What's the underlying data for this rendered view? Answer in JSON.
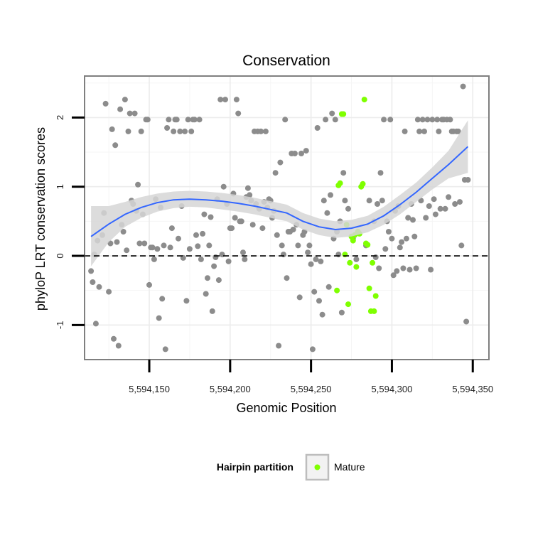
{
  "chart_data": {
    "type": "scatter",
    "title": "Conservation",
    "xlabel": "Genomic Position",
    "ylabel": "phyloP LRT conservation scores",
    "xlim": [
      5594110,
      5594360
    ],
    "ylim": [
      -1.5,
      2.6
    ],
    "x_ticks": [
      5594150,
      5594200,
      5594250,
      5594300,
      5594350
    ],
    "x_tick_labels": [
      "5,594,150",
      "5,594,200",
      "5,594,250",
      "5,594,300",
      "5,594,350"
    ],
    "y_ticks": [
      -1,
      0,
      1,
      2
    ],
    "y_tick_labels": [
      "-1",
      "0",
      "1",
      "2"
    ],
    "reference_line_y": 0,
    "grid": true,
    "legend": {
      "title": "Hairpin partition",
      "placement": "bottom",
      "entries": [
        {
          "name": "Mature",
          "color": "#7fff00"
        }
      ]
    },
    "colors": {
      "other": "#8c8c8c",
      "mature": "#7fff00",
      "smooth_line": "#3366ff",
      "confidence_band": "#d6d6d6",
      "reference_line": "#000000"
    },
    "series": [
      {
        "points": [
          [
            5594114,
            -0.22
          ],
          [
            5594115,
            -0.38
          ],
          [
            5594116,
            0.02
          ],
          [
            5594117,
            -0.98
          ],
          [
            5594118,
            0.22
          ],
          [
            5594119,
            -0.45
          ],
          [
            5594121,
            0.3
          ],
          [
            5594122,
            0.62
          ],
          [
            5594123,
            2.2
          ],
          [
            5594125,
            -0.52
          ],
          [
            5594126,
            0.18
          ],
          [
            5594127,
            1.83
          ],
          [
            5594128,
            -1.2
          ],
          [
            5594129,
            1.6
          ],
          [
            5594130,
            0.2
          ],
          [
            5594131,
            -1.3
          ],
          [
            5594132,
            2.12
          ],
          [
            5594133,
            0.45
          ],
          [
            5594134,
            0.35
          ],
          [
            5594135,
            2.26
          ],
          [
            5594136,
            0.08
          ],
          [
            5594137,
            1.8
          ],
          [
            5594138,
            2.06
          ],
          [
            5594139,
            0.8
          ],
          [
            5594140,
            0.75
          ],
          [
            5594141,
            2.06
          ],
          [
            5594142,
            0.65
          ],
          [
            5594143,
            1.03
          ],
          [
            5594144,
            0.18
          ],
          [
            5594145,
            1.8
          ],
          [
            5594146,
            0.6
          ],
          [
            5594147,
            0.18
          ],
          [
            5594148,
            1.97
          ],
          [
            5594149,
            1.97
          ],
          [
            5594150,
            -0.42
          ],
          [
            5594151,
            0.12
          ],
          [
            5594152,
            0.12
          ],
          [
            5594153,
            -0.05
          ],
          [
            5594154,
            0.82
          ],
          [
            5594155,
            0.1
          ],
          [
            5594156,
            -0.9
          ],
          [
            5594157,
            0.7
          ],
          [
            5594158,
            -0.62
          ],
          [
            5594159,
            0.15
          ],
          [
            5594160,
            -1.35
          ],
          [
            5594161,
            1.85
          ],
          [
            5594162,
            1.97
          ],
          [
            5594163,
            0.12
          ],
          [
            5594164,
            0.4
          ],
          [
            5594165,
            1.8
          ],
          [
            5594166,
            1.97
          ],
          [
            5594167,
            1.97
          ],
          [
            5594168,
            0.25
          ],
          [
            5594169,
            1.8
          ],
          [
            5594170,
            0.72
          ],
          [
            5594171,
            -0.03
          ],
          [
            5594172,
            1.8
          ],
          [
            5594173,
            -0.65
          ],
          [
            5594174,
            1.97
          ],
          [
            5594175,
            0.1
          ],
          [
            5594176,
            1.8
          ],
          [
            5594177,
            1.97
          ],
          [
            5594178,
            1.97
          ],
          [
            5594179,
            0.3
          ],
          [
            5594180,
            0.14
          ],
          [
            5594181,
            1.97
          ],
          [
            5594182,
            -0.05
          ],
          [
            5594183,
            0.32
          ],
          [
            5594184,
            0.6
          ],
          [
            5594185,
            -0.55
          ],
          [
            5594186,
            -0.32
          ],
          [
            5594187,
            0.15
          ],
          [
            5594188,
            0.56
          ],
          [
            5594189,
            -0.8
          ],
          [
            5594190,
            -0.15
          ],
          [
            5594191,
            -0.02
          ],
          [
            5594192,
            0.82
          ],
          [
            5594193,
            -0.35
          ],
          [
            5594194,
            2.26
          ],
          [
            5594195,
            0.02
          ],
          [
            5594196,
            1.0
          ],
          [
            5594197,
            2.26
          ],
          [
            5594198,
            0.75
          ],
          [
            5594199,
            -0.08
          ],
          [
            5594200,
            0.4
          ],
          [
            5594201,
            0.4
          ],
          [
            5594202,
            0.9
          ],
          [
            5594203,
            0.55
          ],
          [
            5594204,
            2.26
          ],
          [
            5594205,
            2.06
          ],
          [
            5594206,
            0.5
          ],
          [
            5594207,
            0.5
          ],
          [
            5594208,
            0.05
          ],
          [
            5594209,
            -0.05
          ],
          [
            5594210,
            0.85
          ],
          [
            5594211,
            0.98
          ],
          [
            5594212,
            0.88
          ],
          [
            5594213,
            0.8
          ],
          [
            5594214,
            0.45
          ],
          [
            5594215,
            1.8
          ],
          [
            5594216,
            0.75
          ],
          [
            5594217,
            1.8
          ],
          [
            5594218,
            0.68
          ],
          [
            5594219,
            1.8
          ],
          [
            5594220,
            0.4
          ],
          [
            5594221,
            0.78
          ],
          [
            5594222,
            1.8
          ],
          [
            5594223,
            0.7
          ],
          [
            5594224,
            0.82
          ],
          [
            5594225,
            0.8
          ],
          [
            5594226,
            0.55
          ],
          [
            5594227,
            0.65
          ],
          [
            5594228,
            1.2
          ],
          [
            5594229,
            0.3
          ],
          [
            5594230,
            -1.3
          ],
          [
            5594231,
            1.35
          ],
          [
            5594232,
            0.15
          ],
          [
            5594233,
            0.02
          ],
          [
            5594234,
            1.97
          ],
          [
            5594235,
            -0.32
          ],
          [
            5594236,
            0.35
          ],
          [
            5594237,
            0.35
          ],
          [
            5594238,
            1.48
          ],
          [
            5594239,
            0.38
          ],
          [
            5594240,
            1.48
          ],
          [
            5594241,
            0.45
          ],
          [
            5594242,
            0.15
          ],
          [
            5594243,
            -0.6
          ],
          [
            5594244,
            1.48
          ],
          [
            5594245,
            0.3
          ],
          [
            5594246,
            0.35
          ],
          [
            5594247,
            1.52
          ],
          [
            5594248,
            0.05
          ],
          [
            5594249,
            0.15
          ],
          [
            5594250,
            -0.12
          ],
          [
            5594251,
            -1.35
          ],
          [
            5594252,
            -0.52
          ],
          [
            5594253,
            -0.05
          ],
          [
            5594254,
            1.85
          ],
          [
            5594255,
            -0.65
          ],
          [
            5594256,
            -0.08
          ],
          [
            5594257,
            -0.85
          ],
          [
            5594258,
            0.8
          ],
          [
            5594259,
            1.97
          ],
          [
            5594260,
            0.62
          ],
          [
            5594261,
            -0.45
          ],
          [
            5594262,
            0.88
          ],
          [
            5594263,
            2.06
          ],
          [
            5594264,
            0.25
          ],
          [
            5594265,
            1.97
          ],
          [
            5594266,
            0.35
          ],
          [
            5594267,
            0.02
          ],
          [
            5594268,
            0.5
          ],
          [
            5594269,
            -0.82
          ],
          [
            5594270,
            1.2
          ],
          [
            5594271,
            0.8
          ],
          [
            5594273,
            0.68
          ],
          [
            5594276,
            0.25
          ],
          [
            5594278,
            -0.05
          ],
          [
            5594284,
            0.15
          ],
          [
            5594286,
            0.8
          ],
          [
            5594289,
            0.5
          ],
          [
            5594290,
            -0.02
          ],
          [
            5594291,
            0.75
          ],
          [
            5594292,
            -0.18
          ],
          [
            5594293,
            1.2
          ],
          [
            5594294,
            0.8
          ],
          [
            5594295,
            1.97
          ],
          [
            5594296,
            0.1
          ],
          [
            5594297,
            0.5
          ],
          [
            5594298,
            0.35
          ],
          [
            5594299,
            1.97
          ],
          [
            5594300,
            0.25
          ],
          [
            5594301,
            -0.28
          ],
          [
            5594302,
            0.65
          ],
          [
            5594303,
            -0.22
          ],
          [
            5594304,
            0.72
          ],
          [
            5594305,
            0.12
          ],
          [
            5594306,
            0.2
          ],
          [
            5594307,
            -0.18
          ],
          [
            5594308,
            1.8
          ],
          [
            5594309,
            0.25
          ],
          [
            5594310,
            0.55
          ],
          [
            5594311,
            -0.2
          ],
          [
            5594312,
            0.75
          ],
          [
            5594313,
            0.52
          ],
          [
            5594314,
            0.28
          ],
          [
            5594315,
            -0.18
          ],
          [
            5594316,
            1.97
          ],
          [
            5594317,
            1.8
          ],
          [
            5594318,
            0.8
          ],
          [
            5594319,
            1.97
          ],
          [
            5594320,
            1.8
          ],
          [
            5594321,
            0.55
          ],
          [
            5594322,
            1.97
          ],
          [
            5594323,
            0.72
          ],
          [
            5594324,
            -0.2
          ],
          [
            5594325,
            1.97
          ],
          [
            5594326,
            0.82
          ],
          [
            5594327,
            0.6
          ],
          [
            5594328,
            1.97
          ],
          [
            5594329,
            1.8
          ],
          [
            5594330,
            0.68
          ],
          [
            5594331,
            1.97
          ],
          [
            5594332,
            1.97
          ],
          [
            5594333,
            0.68
          ],
          [
            5594334,
            1.97
          ],
          [
            5594335,
            0.85
          ],
          [
            5594336,
            1.97
          ],
          [
            5594337,
            1.8
          ],
          [
            5594338,
            1.8
          ],
          [
            5594339,
            0.75
          ],
          [
            5594340,
            1.8
          ],
          [
            5594341,
            1.8
          ],
          [
            5594342,
            0.78
          ],
          [
            5594343,
            0.15
          ],
          [
            5594344,
            2.45
          ],
          [
            5594345,
            1.1
          ],
          [
            5594346,
            -0.95
          ],
          [
            5594347,
            1.1
          ]
        ]
      },
      {
        "name": "Mature",
        "points": [
          [
            5594266,
            -0.5
          ],
          [
            5594267,
            1.02
          ],
          [
            5594268,
            1.05
          ],
          [
            5594269,
            2.05
          ],
          [
            5594270,
            2.05
          ],
          [
            5594271,
            0.02
          ],
          [
            5594272,
            0.45
          ],
          [
            5594273,
            -0.7
          ],
          [
            5594274,
            -0.1
          ],
          [
            5594275,
            0.28
          ],
          [
            5594276,
            0.22
          ],
          [
            5594277,
            0.3
          ],
          [
            5594278,
            -0.16
          ],
          [
            5594279,
            0.35
          ],
          [
            5594280,
            0.32
          ],
          [
            5594281,
            1.0
          ],
          [
            5594282,
            1.04
          ],
          [
            5594283,
            2.26
          ],
          [
            5594284,
            0.18
          ],
          [
            5594285,
            0.16
          ],
          [
            5594286,
            -0.47
          ],
          [
            5594287,
            -0.8
          ],
          [
            5594288,
            -0.1
          ],
          [
            5594289,
            -0.8
          ],
          [
            5594290,
            -0.58
          ]
        ]
      }
    ],
    "smooth": {
      "x": [
        5594114,
        5594125,
        5594135,
        5594145,
        5594155,
        5594165,
        5594175,
        5594185,
        5594195,
        5594205,
        5594215,
        5594225,
        5594235,
        5594245,
        5594255,
        5594265,
        5594275,
        5594285,
        5594295,
        5594305,
        5594315,
        5594325,
        5594335,
        5594347
      ],
      "y": [
        0.28,
        0.46,
        0.6,
        0.7,
        0.77,
        0.81,
        0.82,
        0.81,
        0.79,
        0.76,
        0.72,
        0.67,
        0.62,
        0.5,
        0.42,
        0.38,
        0.4,
        0.46,
        0.58,
        0.74,
        0.92,
        1.12,
        1.32,
        1.58
      ],
      "lower": [
        -0.15,
        0.2,
        0.42,
        0.55,
        0.64,
        0.69,
        0.71,
        0.7,
        0.67,
        0.64,
        0.6,
        0.55,
        0.5,
        0.38,
        0.3,
        0.26,
        0.28,
        0.34,
        0.45,
        0.6,
        0.78,
        0.96,
        1.12,
        1.2
      ],
      "upper": [
        0.72,
        0.72,
        0.78,
        0.85,
        0.9,
        0.93,
        0.94,
        0.93,
        0.91,
        0.88,
        0.84,
        0.79,
        0.74,
        0.62,
        0.54,
        0.5,
        0.52,
        0.58,
        0.71,
        0.88,
        1.06,
        1.28,
        1.52,
        1.96
      ]
    }
  }
}
